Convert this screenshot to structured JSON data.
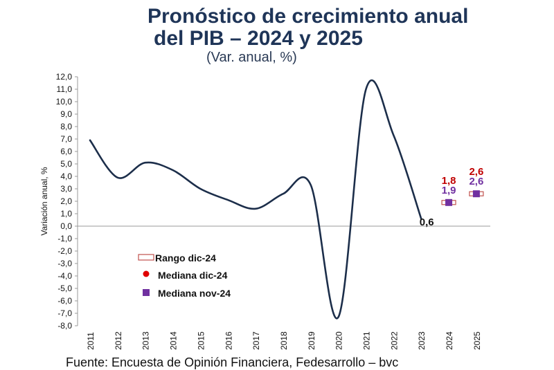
{
  "chart_data": {
    "type": "line",
    "title": "Pronóstico de crecimiento anual",
    "title_line2": "del PIB – 2024 y 2025",
    "subtitle": "(Var. anual, %)",
    "ylabel": "Variación anual, %",
    "xlabel": "",
    "ylim": [
      -8,
      12
    ],
    "ytick_labels": [
      "12,0",
      "11,0",
      "10,0",
      "9,0",
      "8,0",
      "7,0",
      "6,0",
      "5,0",
      "4,0",
      "3,0",
      "2,0",
      "1,0",
      "0,0",
      "-1,0",
      "-2,0",
      "-3,0",
      "-4,0",
      "-5,0",
      "-6,0",
      "-7,0",
      "-8,0"
    ],
    "categories": [
      "2011",
      "2012",
      "2013",
      "2014",
      "2015",
      "2016",
      "2017",
      "2018",
      "2019",
      "2020",
      "2021",
      "2022",
      "2023",
      "2024",
      "2025"
    ],
    "series": [
      {
        "name": "PIB",
        "color": "#1c2e4a",
        "values": [
          6.9,
          3.9,
          5.1,
          4.5,
          3.0,
          2.1,
          1.4,
          2.6,
          3.3,
          -7.3,
          11.0,
          7.3,
          0.6,
          null,
          null
        ]
      },
      {
        "name": "Mediana nov-24",
        "color": "#7030a0",
        "values": [
          null,
          null,
          null,
          null,
          null,
          null,
          null,
          null,
          null,
          null,
          null,
          null,
          null,
          1.9,
          2.6
        ]
      },
      {
        "name": "Mediana dic-24",
        "color": "#e00000",
        "values": [
          null,
          null,
          null,
          null,
          null,
          null,
          null,
          null,
          null,
          null,
          null,
          null,
          null,
          1.8,
          2.6
        ]
      }
    ],
    "range_dic24": [
      [
        1.7,
        2.0
      ],
      [
        2.5,
        2.7
      ]
    ],
    "data_labels": {
      "last_actual": "0,6",
      "mediana_dic": [
        "1,8",
        "2,6"
      ],
      "mediana_nov": [
        "1,9",
        "2,6"
      ]
    },
    "legend": {
      "placement": "center-left",
      "items": [
        {
          "label": "Rango dic-24",
          "marker": "rect-outline",
          "color": "#c0504d"
        },
        {
          "label": "Mediana dic-24",
          "marker": "circle",
          "color": "#e00000"
        },
        {
          "label": "Mediana nov-24",
          "marker": "square",
          "color": "#7030a0"
        }
      ]
    },
    "grid": false
  },
  "source": "Fuente: Encuesta de Opinión Financiera, Fedesarrollo – bvc"
}
